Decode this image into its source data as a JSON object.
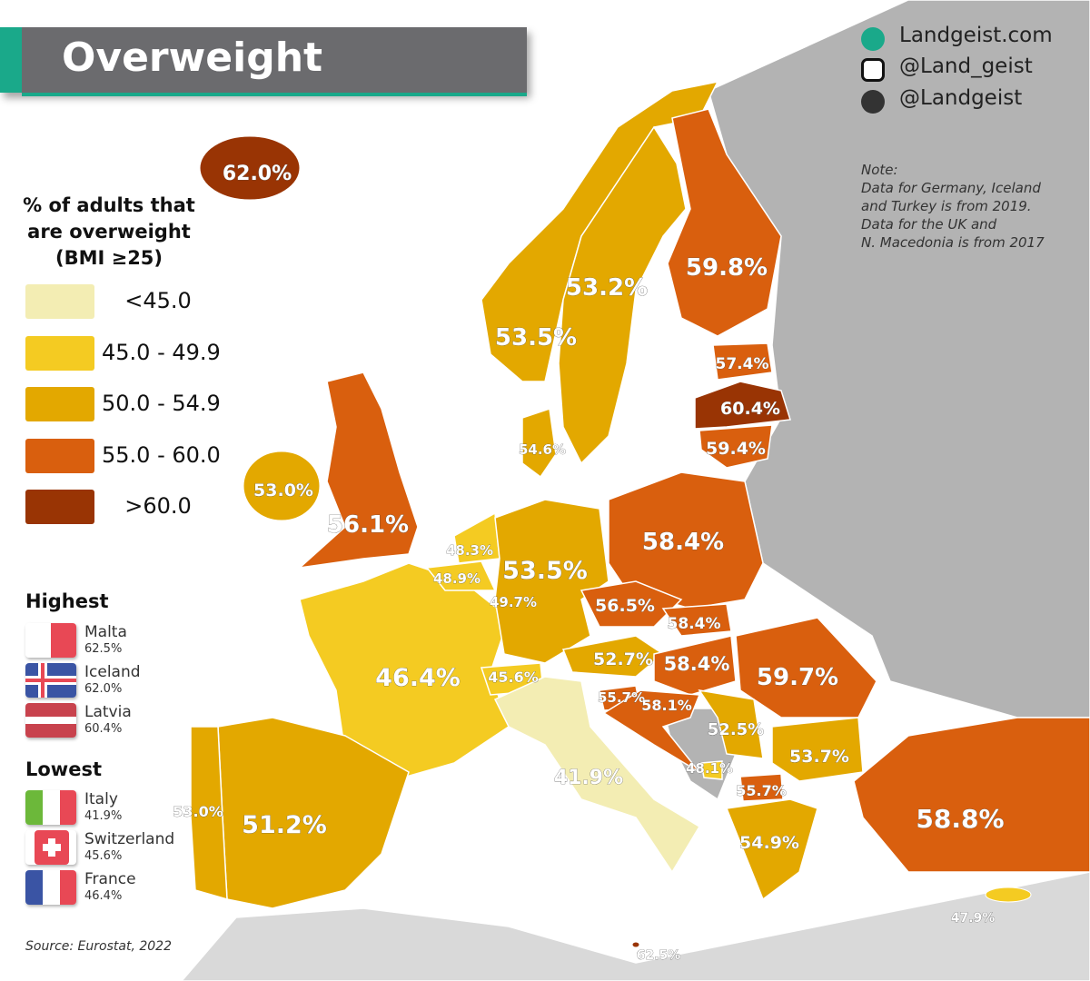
{
  "title": "Overweight",
  "colors": {
    "lt45": "#f3edb3",
    "45to49": "#f4cb22",
    "50to54": "#e3a800",
    "55to60": "#d95f0e",
    "gt60": "#993404",
    "nodata": "#b3b3b3",
    "accent": "#1aa98a"
  },
  "legend": {
    "title_lines": [
      "% of adults that",
      "are overweight",
      "(BMI ≥25)"
    ],
    "items": [
      {
        "label": "<45.0",
        "color": "#f3edb3"
      },
      {
        "label": "45.0 - 49.9",
        "color": "#f4cb22"
      },
      {
        "label": "50.0 - 54.9",
        "color": "#e3a800"
      },
      {
        "label": "55.0 - 60.0",
        "color": "#d95f0e"
      },
      {
        "label": ">60.0",
        "color": "#993404"
      }
    ]
  },
  "highest": {
    "title": "Highest",
    "items": [
      {
        "name": "Malta",
        "value": "62.5%"
      },
      {
        "name": "Iceland",
        "value": "62.0%"
      },
      {
        "name": "Latvia",
        "value": "60.4%"
      }
    ]
  },
  "lowest": {
    "title": "Lowest",
    "items": [
      {
        "name": "Italy",
        "value": "41.9%"
      },
      {
        "name": "Switzerland",
        "value": "45.6%"
      },
      {
        "name": "France",
        "value": "46.4%"
      }
    ]
  },
  "social": {
    "website": "Landgeist.com",
    "instagram": "@Land_geist",
    "twitter": "@Landgeist"
  },
  "note": {
    "lines": [
      "Note:",
      "Data for Germany, Iceland",
      "and Turkey is from 2019.",
      "Data for the UK and",
      "N. Macedonia is from 2017"
    ]
  },
  "source": "Source: Eurostat, 2022",
  "map_values": [
    "62.0%",
    "53.2%",
    "53.5%",
    "59.8%",
    "57.4%",
    "60.4%",
    "59.4%",
    "54.6%",
    "56.1%",
    "53.0%",
    "46.4%",
    "51.2%",
    "53.0%",
    "48.3%",
    "48.9%",
    "49.7%",
    "53.5%",
    "58.4%",
    "56.5%",
    "58.4%",
    "52.7%",
    "58.4%",
    "59.7%",
    "45.6%",
    "41.9%",
    "55.7%",
    "58.1%",
    "52.5%",
    "53.7%",
    "48.1%",
    "55.7%",
    "54.9%",
    "58.8%",
    "47.9%",
    "62.5%"
  ]
}
